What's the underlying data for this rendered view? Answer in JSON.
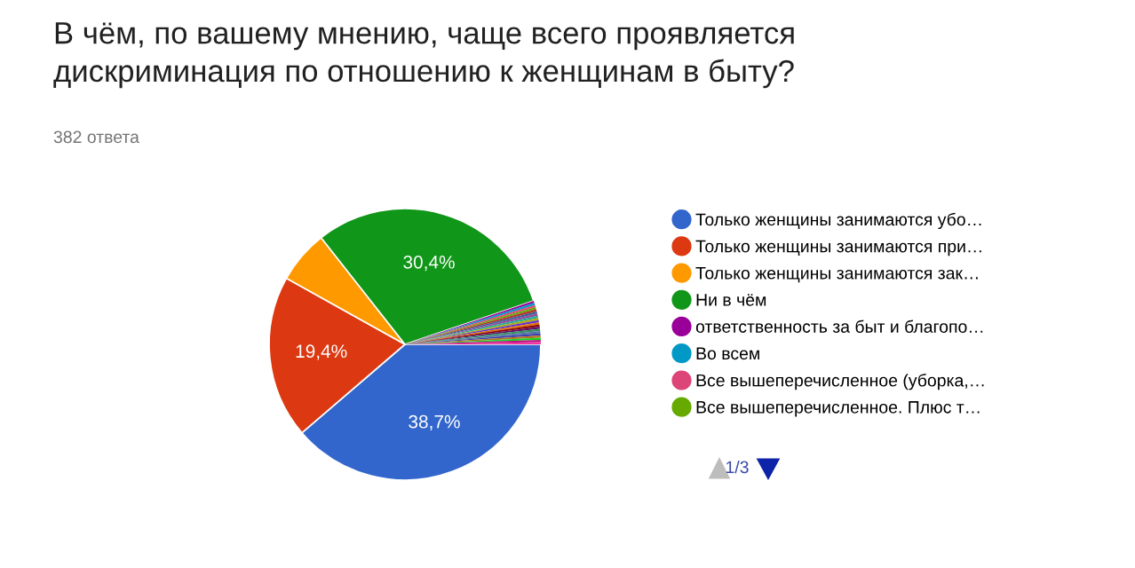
{
  "chart_data": {
    "type": "pie",
    "title": "В чём, по вашему мнению, чаще всего проявляется\nдискриминация по отношению к женщинам в быту?",
    "subtitle": "382 ответа",
    "categories": [
      "Только женщины занимаются убо…",
      "Только женщины занимаются при…",
      "Только женщины занимаются зак…",
      "Ни в чём",
      "ответственность за быт и благопо…",
      "Во всем",
      "Все вышеперечисленное (уборка,…",
      "Все вышеперечисленное. Плюс т…",
      null,
      null,
      null,
      null,
      null,
      null,
      null,
      null,
      null,
      null,
      null,
      null,
      null,
      null,
      null,
      null
    ],
    "values": [
      38.7,
      19.4,
      6.3,
      30.4,
      0.26,
      0.26,
      0.26,
      0.26,
      0.26,
      0.26,
      0.26,
      0.26,
      0.26,
      0.26,
      0.26,
      0.26,
      0.26,
      0.26,
      0.26,
      0.26,
      0.26,
      0.26,
      0.26,
      0.26
    ],
    "colors": [
      "#3366cc",
      "#dc3912",
      "#ff9900",
      "#109618",
      "#990099",
      "#0099c6",
      "#dd4477",
      "#66aa00",
      "#b82e2e",
      "#316395",
      "#994499",
      "#22aa99",
      "#aaaa11",
      "#6633cc",
      "#e67300",
      "#8b0707",
      "#651067",
      "#329262",
      "#5574a6",
      "#3b3eac",
      "#b77322",
      "#16d620",
      "#b91383",
      "#f4359e"
    ],
    "value_labels": [
      "38,7%",
      "19,4%",
      null,
      "30,4%",
      null,
      null,
      null,
      null,
      null,
      null,
      null,
      null,
      null,
      null,
      null,
      null,
      null,
      null,
      null,
      null,
      null,
      null,
      null,
      null
    ],
    "legend": "right",
    "annotations": [
      "1/3"
    ]
  }
}
